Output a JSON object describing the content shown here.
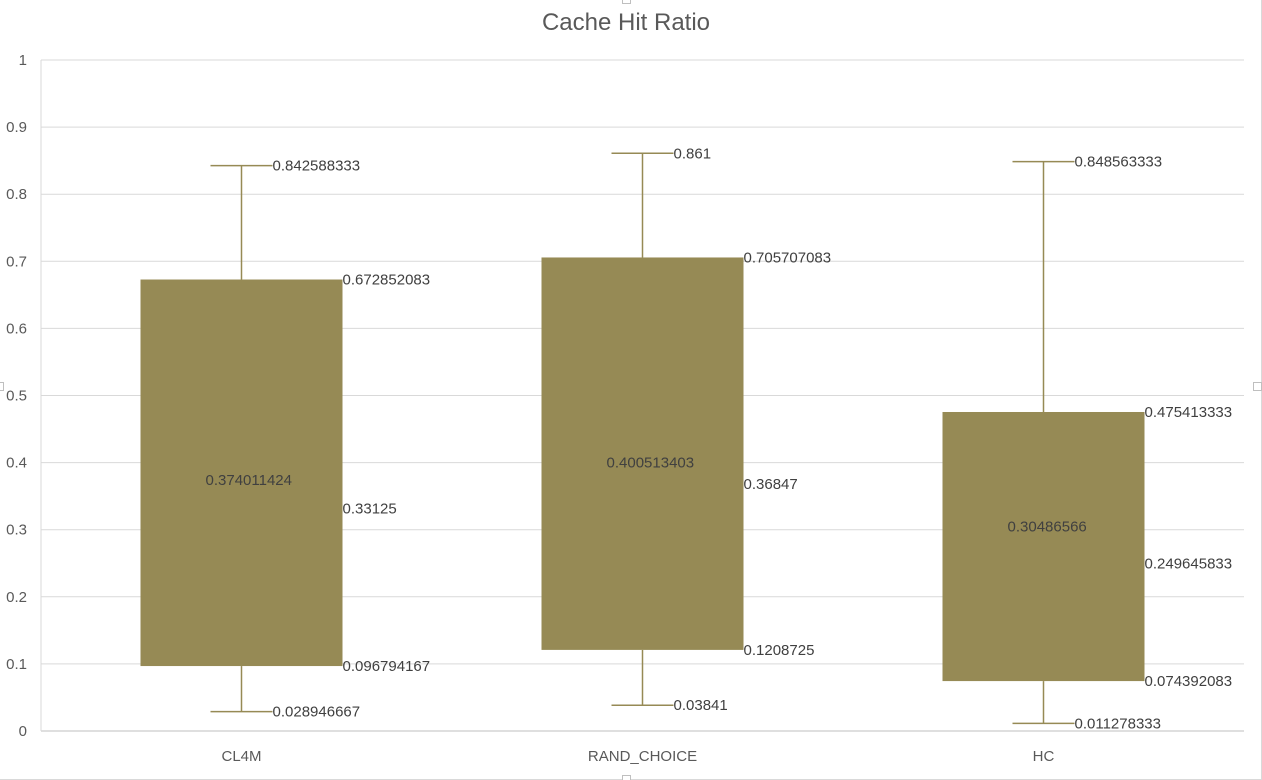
{
  "chart_data": {
    "type": "box",
    "title": "Cache Hit Ratio",
    "xlabel": "",
    "ylabel": "",
    "ylim": [
      0,
      1
    ],
    "yticks": [
      "0",
      "0.1",
      "0.2",
      "0.3",
      "0.4",
      "0.5",
      "0.6",
      "0.7",
      "0.8",
      "0.9",
      "1"
    ],
    "grid": true,
    "legend": "none",
    "box_color": "#968a55",
    "whisker_color": "#968a55",
    "categories": [
      "CL4M",
      "RAND_CHOICE",
      "HC"
    ],
    "boxes": [
      {
        "category": "CL4M",
        "min": 0.028946667,
        "q1": 0.096794167,
        "median": 0.33125,
        "mean": 0.374011424,
        "q3": 0.672852083,
        "max": 0.842588333,
        "labels": {
          "min": "0.028946667",
          "q1": "0.096794167",
          "median": "0.33125",
          "mean": "0.374011424",
          "q3": "0.672852083",
          "max": "0.842588333"
        }
      },
      {
        "category": "RAND_CHOICE",
        "min": 0.03841,
        "q1": 0.1208725,
        "median": 0.36847,
        "mean": 0.400513403,
        "q3": 0.705707083,
        "max": 0.861,
        "labels": {
          "min": "0.03841",
          "q1": "0.1208725",
          "median": "0.36847",
          "mean": "0.400513403",
          "q3": "0.705707083",
          "max": "0.861"
        }
      },
      {
        "category": "HC",
        "min": 0.011278333,
        "q1": 0.074392083,
        "median": 0.249645833,
        "mean": 0.30486566,
        "q3": 0.475413333,
        "max": 0.848563333,
        "labels": {
          "min": "0.011278333",
          "q1": "0.074392083",
          "median": "0.249645833",
          "mean": "0.30486566",
          "q3": "0.475413333",
          "max": "0.848563333"
        }
      }
    ]
  }
}
